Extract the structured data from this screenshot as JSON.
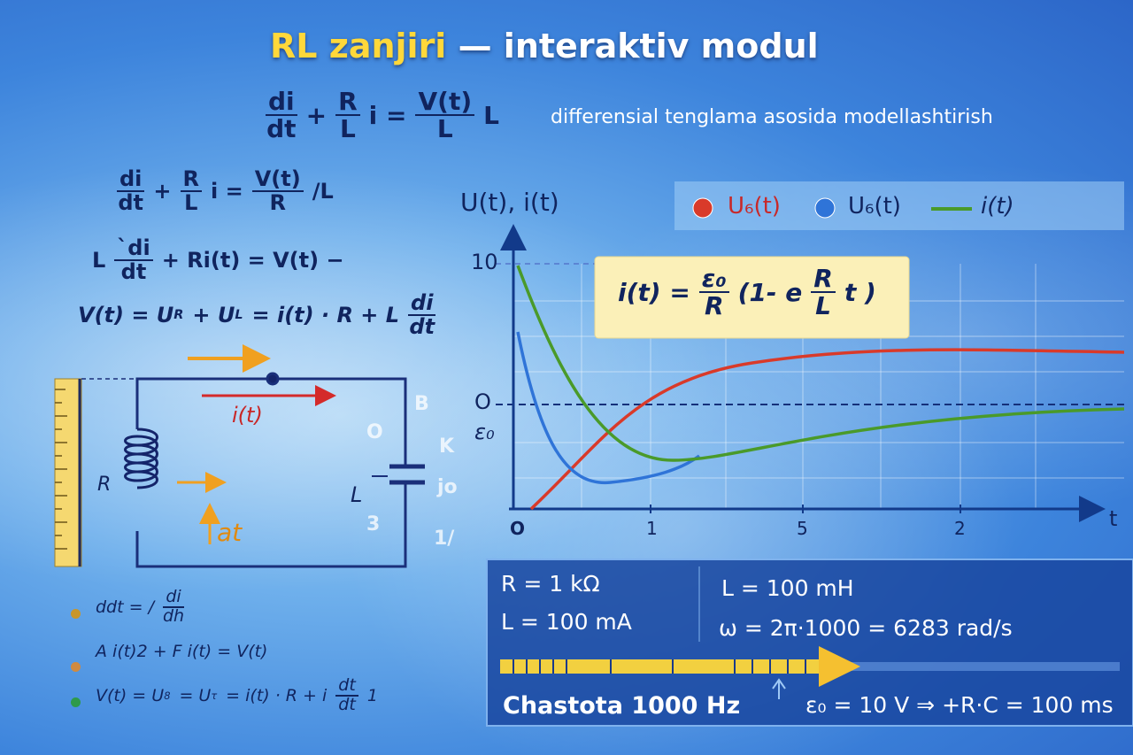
{
  "header": {
    "title_highlight": "RL zanjiri",
    "title_rest": "— interaktiv modul",
    "equation": [
      {
        "num": "di",
        "den": "dt"
      },
      "+",
      {
        "num": "R",
        "den": "L"
      },
      "i =",
      {
        "num": "V(t)",
        "den": "L"
      },
      "L"
    ],
    "subtitle": "differensial tenglama asosida modellashtirish"
  },
  "equations": [
    [
      {
        "num": "di",
        "den": "dt"
      },
      "+",
      {
        "num": "R",
        "den": "L"
      },
      "i =",
      {
        "num": "V(t)",
        "den": "R"
      },
      "/L"
    ],
    [
      "L",
      {
        "num": "ˋdi",
        "den": "dt"
      },
      "+ Ri(t) = V(t) −"
    ],
    [
      "V(t) = U",
      {
        "sub": "R"
      },
      "+ U",
      {
        "sub": "L"
      },
      "= i̇(t) · R + L",
      {
        "num": "di",
        "den": "dt"
      }
    ]
  ],
  "bullets": [
    {
      "color": "#c8962a",
      "text": [
        "ddt = /",
        {
          "num": "di",
          "den": "dh"
        }
      ]
    },
    {
      "color": "#d08a40",
      "text": [
        "A i(t)2 + F i(t) = V(t)"
      ]
    },
    {
      "color": "#2e9a4a",
      "text": [
        "V(t) = U",
        {
          "sub": "8"
        },
        "= U",
        {
          "sub": "τ"
        },
        "= i(t) · R + i",
        {
          "num": "dt",
          "den": "dt"
        },
        "1"
      ]
    }
  ],
  "circuit": {
    "current": "i(t)",
    "coil": "R",
    "arrow_label": "at",
    "capacitor": "L",
    "stray": [
      "B",
      "O",
      "K",
      "jo",
      "3",
      "1/"
    ]
  },
  "plot": {
    "y_label": "U(t), i(t)",
    "x_label": "t",
    "y_ticks": [
      "10",
      "O",
      "ε₀"
    ],
    "x_ticks": [
      "O",
      "1",
      "5",
      "2"
    ],
    "legend": [
      {
        "name": "U₆(t)",
        "color": "#d93a2a"
      },
      {
        "name": "U₆(t)",
        "color": "#2f74d8"
      },
      {
        "name": "i(t)",
        "color": "#4a9a2a"
      }
    ],
    "formula": [
      "i(t) =",
      {
        "num": "ε₀",
        "den": "R"
      },
      "(1- e",
      {
        "num": "R",
        "den": "L"
      },
      "t )"
    ]
  },
  "panel": {
    "resistance": "R = 1 kΩ",
    "inductance": "L = 100 mH",
    "current": "L = 100 mA",
    "omega": "ω = 2π·1000 = 6283 rad/s",
    "frequency": "Chastota 1000 Hz",
    "time_constant": "ε₀ = 10 V ⇒ +R·C = 100 ms"
  }
}
